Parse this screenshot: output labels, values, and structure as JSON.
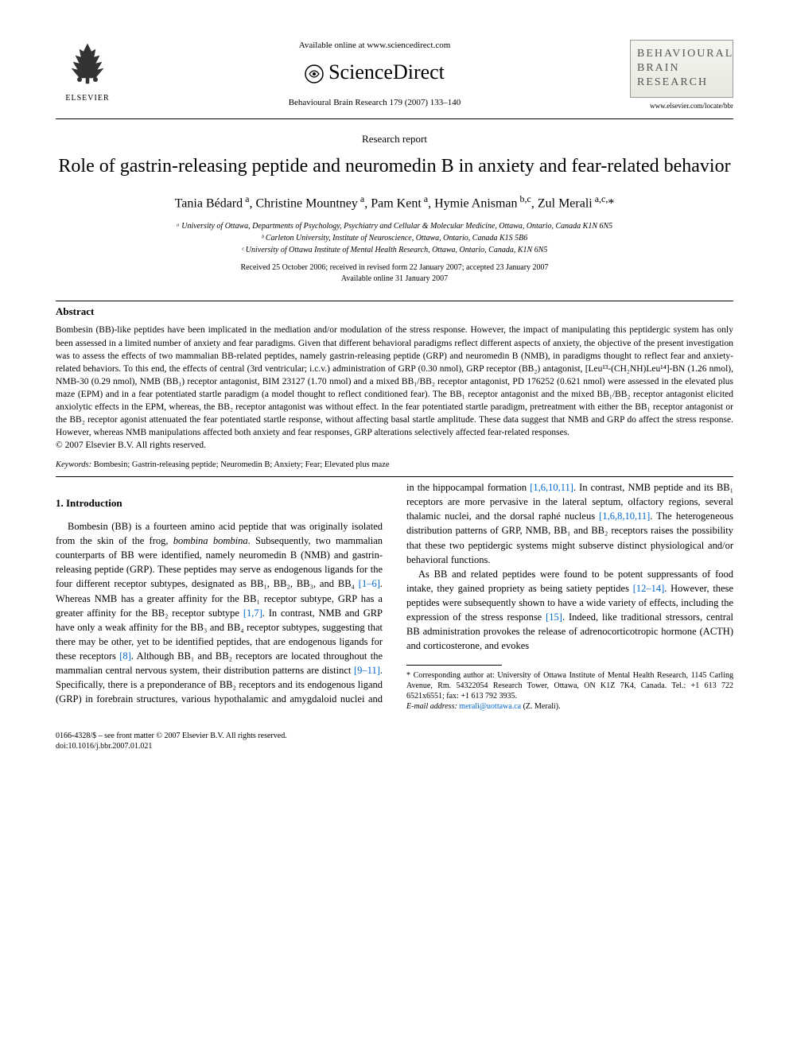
{
  "header": {
    "publisher_name": "ELSEVIER",
    "available_text": "Available online at www.sciencedirect.com",
    "sciencedirect_label": "ScienceDirect",
    "journal_reference": "Behavioural Brain Research 179 (2007) 133–140",
    "journal_cover_title": "BEHAVIOURAL BRAIN RESEARCH",
    "journal_url": "www.elsevier.com/locate/bbr"
  },
  "article": {
    "type": "Research report",
    "title": "Role of gastrin-releasing peptide and neuromedin B in anxiety and fear-related behavior",
    "authors_html": "Tania Bédard<sup> a</sup>, Christine Mountney<sup> a</sup>, Pam Kent<sup> a</sup>, Hymie Anisman<sup> b,c</sup>, Zul Merali<sup> a,c,</sup>*",
    "affiliations": [
      "ᵃ University of Ottawa, Departments of Psychology, Psychiatry and Cellular & Molecular Medicine, Ottawa, Ontario, Canada K1N 6N5",
      "ᵇ Carleton University, Institute of Neuroscience, Ottawa, Ontario, Canada K1S 5B6",
      "ᶜ University of Ottawa Institute of Mental Health Research, Ottawa, Ontario, Canada, K1N 6N5"
    ],
    "dates_line1": "Received 25 October 2006; received in revised form 22 January 2007; accepted 23 January 2007",
    "dates_line2": "Available online 31 January 2007"
  },
  "abstract": {
    "heading": "Abstract",
    "text": "Bombesin (BB)-like peptides have been implicated in the mediation and/or modulation of the stress response. However, the impact of manipulating this peptidergic system has only been assessed in a limited number of anxiety and fear paradigms. Given that different behavioral paradigms reflect different aspects of anxiety, the objective of the present investigation was to assess the effects of two mammalian BB-related peptides, namely gastrin-releasing peptide (GRP) and neuromedin B (NMB), in paradigms thought to reflect fear and anxiety-related behaviors. To this end, the effects of central (3rd ventricular; i.c.v.) administration of GRP (0.30 nmol), GRP receptor (BB₂) antagonist, [Leu¹³-(CH₂NH)Leu¹⁴]-BN (1.26 nmol), NMB-30 (0.29 nmol), NMB (BB₁) receptor antagonist, BIM 23127 (1.70 nmol) and a mixed BB₁/BB₂ receptor antagonist, PD 176252 (0.621 nmol) were assessed in the elevated plus maze (EPM) and in a fear potentiated startle paradigm (a model thought to reflect conditioned fear). The BB₁ receptor antagonist and the mixed BB₁/BB₂ receptor antagonist elicited anxiolytic effects in the EPM, whereas, the BB₂ receptor antagonist was without effect. In the fear potentiated startle paradigm, pretreatment with either the BB₁ receptor antagonist or the BB₂ receptor agonist attenuated the fear potentiated startle response, without affecting basal startle amplitude. These data suggest that NMB and GRP do affect the stress response. However, whereas NMB manipulations affected both anxiety and fear responses, GRP alterations selectively affected fear-related responses.",
    "copyright": "© 2007 Elsevier B.V. All rights reserved.",
    "keywords_label": "Keywords:",
    "keywords": "Bombesin; Gastrin-releasing peptide; Neuromedin B; Anxiety; Fear; Elevated plus maze"
  },
  "body": {
    "section_heading": "1. Introduction",
    "para1_pre": "Bombesin (BB) is a fourteen amino acid peptide that was originally isolated from the skin of the frog, ",
    "para1_italic": "bombina bombina",
    "para1_post1": ". Subsequently, two mammalian counterparts of BB were identified, namely neuromedin B (NMB) and gastrin-releasing peptide (GRP). These peptides may serve as endogenous ligands for the four different receptor subtypes, designated as BB₁, BB₂, BB₃, and BB₄ ",
    "ref1": "[1–6]",
    "para1_post2": ". Whereas NMB has a greater affinity for the BB₁ receptor subtype, GRP has a greater affinity for the BB₂ receptor subtype ",
    "ref2": "[1,7]",
    "para1_post3": ". In contrast, NMB and GRP have only a weak affinity for the BB₃ and BB₄ receptor subtypes, suggesting that there may be other, yet to be identified peptides, that are endogenous ligands for these receptors ",
    "ref3": "[8]",
    "para1_post4": ". Although BB₁ and BB₂ receptors are located throughout the mammalian central nervous system, their distribution patterns are distinct ",
    "ref4": "[9–11]",
    "para1_post5": ". Specifically, there is a preponderance of BB₂ receptors and its endogenous ligand (GRP) in forebrain structures, various hypothalamic and amygdaloid nuclei and in the hippocampal formation ",
    "ref5": "[1,6,10,11]",
    "para1_post6": ". In contrast, NMB peptide and its BB₁ receptors are more pervasive in the lateral septum, olfactory regions, several thalamic nuclei, and the dorsal raphé nucleus ",
    "ref6": "[1,6,8,10,11]",
    "para1_post7": ". The heterogeneous distribution patterns of GRP, NMB, BB₁ and BB₂ receptors raises the possibility that these two peptidergic systems might subserve distinct physiological and/or behavioral functions.",
    "para2_pre": "As BB and related peptides were found to be potent suppressants of food intake, they gained propriety as being satiety peptides ",
    "ref7": "[12–14]",
    "para2_mid": ". However, these peptides were subsequently shown to have a wide variety of effects, including the expression of the stress response ",
    "ref8": "[15]",
    "para2_post": ". Indeed, like traditional stressors, central BB administration provokes the release of adrenocorticotropic hormone (ACTH) and corticosterone, and evokes"
  },
  "footnote": {
    "corr_label": "* Corresponding author at: University of Ottawa Institute of Mental Health Research, 1145 Carling Avenue, Rm. 54322054 Research Tower, Ottawa, ON K1Z 7K4, Canada. Tel.: +1 613 722 6521x6551; fax: +1 613 792 3935.",
    "email_label": "E-mail address:",
    "email": "merali@uottawa.ca",
    "email_author": "(Z. Merali)."
  },
  "footer": {
    "issn_line": "0166-4328/$ – see front matter © 2007 Elsevier B.V. All rights reserved.",
    "doi_line": "doi:10.1016/j.bbr.2007.01.021"
  },
  "colors": {
    "link": "#0066cc",
    "text": "#000000",
    "background": "#ffffff",
    "journal_cover_bg_top": "#f5f5f0",
    "journal_cover_bg_bottom": "#e8e8e0",
    "journal_cover_text": "#555555"
  },
  "fonts": {
    "body_family": "Georgia, Times New Roman, serif",
    "title_size_pt": 18,
    "author_size_pt": 12,
    "abstract_size_pt": 9,
    "body_size_pt": 10
  }
}
